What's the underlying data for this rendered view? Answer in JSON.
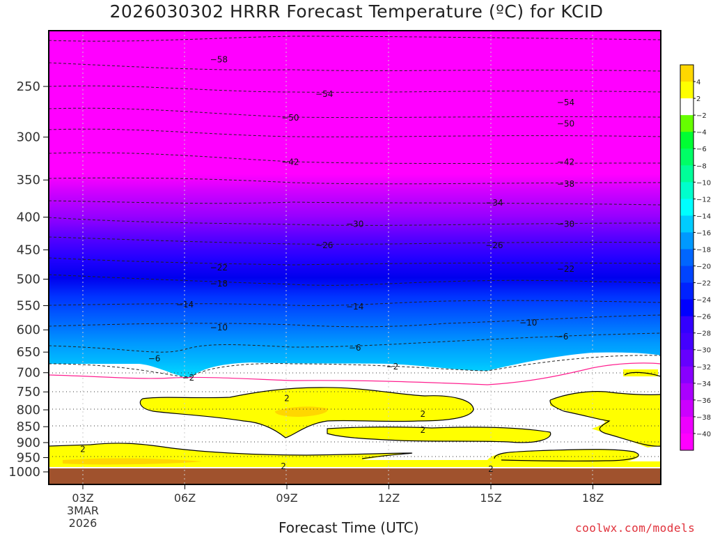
{
  "chart_data": {
    "type": "heatmap",
    "title": "2026030302 HRRR Forecast Temperature (ºC) for KCID",
    "xlabel": "Forecast Time (UTC)",
    "ylabel": "",
    "y_scale": "log-pressure (hPa), inverted",
    "ylim": [
      1050,
      200
    ],
    "xlim": [
      2,
      20
    ],
    "x_ticks": [
      {
        "hour": 3,
        "label": "03Z",
        "date_line1": "3MAR",
        "date_line2": "2026"
      },
      {
        "hour": 6,
        "label": "06Z"
      },
      {
        "hour": 9,
        "label": "09Z"
      },
      {
        "hour": 12,
        "label": "12Z"
      },
      {
        "hour": 15,
        "label": "15Z"
      },
      {
        "hour": 18,
        "label": "18Z"
      }
    ],
    "y_ticks": [
      250,
      300,
      350,
      400,
      450,
      500,
      550,
      600,
      650,
      700,
      750,
      800,
      850,
      900,
      950,
      1000
    ],
    "colorbar_labels": [
      4,
      2,
      -2,
      -4,
      -6,
      -8,
      -10,
      -12,
      -14,
      -16,
      -18,
      -20,
      -22,
      -24,
      -26,
      -28,
      -30,
      -32,
      -34,
      -36,
      -38,
      -40
    ],
    "colorbar_colors": [
      "#ffd700",
      "#ffff00",
      "#ffffff",
      "#66ff00",
      "#00ff33",
      "#00ff66",
      "#00ff99",
      "#00ffcc",
      "#00ffff",
      "#00ccff",
      "#0099ff",
      "#0066ff",
      "#0044ff",
      "#0022ff",
      "#0000ff",
      "#3300ff",
      "#4400ff",
      "#6600ff",
      "#8800ff",
      "#aa00ff",
      "#cc00ff",
      "#ee00ff",
      "#ff00ff"
    ],
    "contour_labels": [
      {
        "value": -58,
        "hour": 7.0,
        "p": 227
      },
      {
        "value": -54,
        "hour": 10.1,
        "p": 257
      },
      {
        "value": -54,
        "hour": 17.2,
        "p": 265
      },
      {
        "value": -50,
        "hour": 9.1,
        "p": 280
      },
      {
        "value": -50,
        "hour": 17.2,
        "p": 286
      },
      {
        "value": -42,
        "hour": 9.1,
        "p": 328
      },
      {
        "value": -42,
        "hour": 17.2,
        "p": 328
      },
      {
        "value": -38,
        "hour": 17.2,
        "p": 355
      },
      {
        "value": -34,
        "hour": 15.1,
        "p": 380
      },
      {
        "value": -30,
        "hour": 11.0,
        "p": 410
      },
      {
        "value": -30,
        "hour": 17.2,
        "p": 410
      },
      {
        "value": -26,
        "hour": 10.1,
        "p": 443
      },
      {
        "value": -26,
        "hour": 15.1,
        "p": 443
      },
      {
        "value": -22,
        "hour": 7.0,
        "p": 480
      },
      {
        "value": -22,
        "hour": 17.2,
        "p": 482
      },
      {
        "value": -18,
        "hour": 7.0,
        "p": 508
      },
      {
        "value": -14,
        "hour": 6.0,
        "p": 548
      },
      {
        "value": -14,
        "hour": 11.0,
        "p": 552
      },
      {
        "value": -10,
        "hour": 7.0,
        "p": 595
      },
      {
        "value": -10,
        "hour": 16.1,
        "p": 585
      },
      {
        "value": -6,
        "hour": 5.1,
        "p": 665
      },
      {
        "value": -6,
        "hour": 11.0,
        "p": 640
      },
      {
        "value": -6,
        "hour": 17.1,
        "p": 615
      },
      {
        "value": -2,
        "hour": 12.1,
        "p": 685
      },
      {
        "value": -2,
        "hour": 6.1,
        "p": 713
      },
      {
        "value": 2,
        "hour": 9.0,
        "p": 768
      },
      {
        "value": 2,
        "hour": 13.0,
        "p": 812
      },
      {
        "value": 2,
        "hour": 13.0,
        "p": 860
      },
      {
        "value": 2,
        "hour": 3.0,
        "p": 922
      },
      {
        "value": 2,
        "hour": 8.9,
        "p": 980
      },
      {
        "value": 2,
        "hour": 15.0,
        "p": 990
      }
    ],
    "legend": "colorbar right"
  },
  "labels": {
    "title": "2026030302 HRRR Forecast Temperature (ºC) for KCID",
    "xlabel": "Forecast Time (UTC)",
    "credit": "coolwx.com/models"
  }
}
